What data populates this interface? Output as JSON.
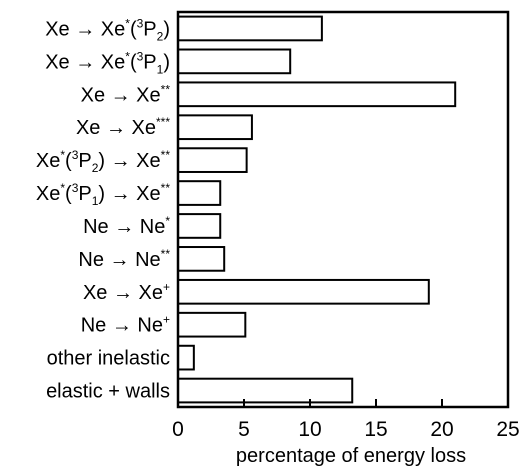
{
  "chart_data": {
    "type": "bar",
    "orientation": "horizontal",
    "title": "",
    "xlabel": "percentage of energy loss",
    "ylabel": "",
    "xlim": [
      0,
      25
    ],
    "xticks": [
      0,
      5,
      10,
      15,
      20,
      25
    ],
    "grid": false,
    "categories": [
      {
        "label": "Xe → Xe*(³P₂)",
        "parts": [
          [
            "t",
            "Xe → Xe"
          ],
          [
            "sup",
            "*"
          ],
          [
            "t",
            "("
          ],
          [
            "sup",
            "3"
          ],
          [
            "t",
            "P"
          ],
          [
            "sub",
            "2"
          ],
          [
            "t",
            ")"
          ]
        ]
      },
      {
        "label": "Xe → Xe*(³P₁)",
        "parts": [
          [
            "t",
            "Xe → Xe"
          ],
          [
            "sup",
            "*"
          ],
          [
            "t",
            "("
          ],
          [
            "sup",
            "3"
          ],
          [
            "t",
            "P"
          ],
          [
            "sub",
            "1"
          ],
          [
            "t",
            ")"
          ]
        ]
      },
      {
        "label": "Xe → Xe**",
        "parts": [
          [
            "t",
            "Xe → Xe"
          ],
          [
            "sup",
            "**"
          ]
        ]
      },
      {
        "label": "Xe → Xe***",
        "parts": [
          [
            "t",
            "Xe → Xe"
          ],
          [
            "sup",
            "***"
          ]
        ]
      },
      {
        "label": "Xe*(³P₂) → Xe**",
        "parts": [
          [
            "t",
            "Xe"
          ],
          [
            "sup",
            "*"
          ],
          [
            "t",
            "("
          ],
          [
            "sup",
            "3"
          ],
          [
            "t",
            "P"
          ],
          [
            "sub",
            "2"
          ],
          [
            "t",
            ") → Xe"
          ],
          [
            "sup",
            "**"
          ]
        ]
      },
      {
        "label": "Xe*(³P₁) → Xe**",
        "parts": [
          [
            "t",
            "Xe"
          ],
          [
            "sup",
            "*"
          ],
          [
            "t",
            "("
          ],
          [
            "sup",
            "3"
          ],
          [
            "t",
            "P"
          ],
          [
            "sub",
            "1"
          ],
          [
            "t",
            ") → Xe"
          ],
          [
            "sup",
            "**"
          ]
        ]
      },
      {
        "label": "Ne → Ne*",
        "parts": [
          [
            "t",
            "Ne → Ne"
          ],
          [
            "sup",
            "*"
          ]
        ]
      },
      {
        "label": "Ne → Ne**",
        "parts": [
          [
            "t",
            "Ne → Ne"
          ],
          [
            "sup",
            "**"
          ]
        ]
      },
      {
        "label": "Xe → Xe⁺",
        "parts": [
          [
            "t",
            "Xe → Xe"
          ],
          [
            "sup",
            "+"
          ]
        ]
      },
      {
        "label": "Ne → Ne⁺",
        "parts": [
          [
            "t",
            "Ne → Ne"
          ],
          [
            "sup",
            "+"
          ]
        ]
      },
      {
        "label": "other inelastic",
        "parts": [
          [
            "t",
            "other inelastic"
          ]
        ]
      },
      {
        "label": "elastic + walls",
        "parts": [
          [
            "t",
            "elastic + walls"
          ]
        ]
      }
    ],
    "values": [
      10.9,
      8.5,
      21.0,
      5.6,
      5.2,
      3.2,
      3.2,
      3.5,
      19.0,
      5.1,
      1.2,
      13.2
    ]
  }
}
